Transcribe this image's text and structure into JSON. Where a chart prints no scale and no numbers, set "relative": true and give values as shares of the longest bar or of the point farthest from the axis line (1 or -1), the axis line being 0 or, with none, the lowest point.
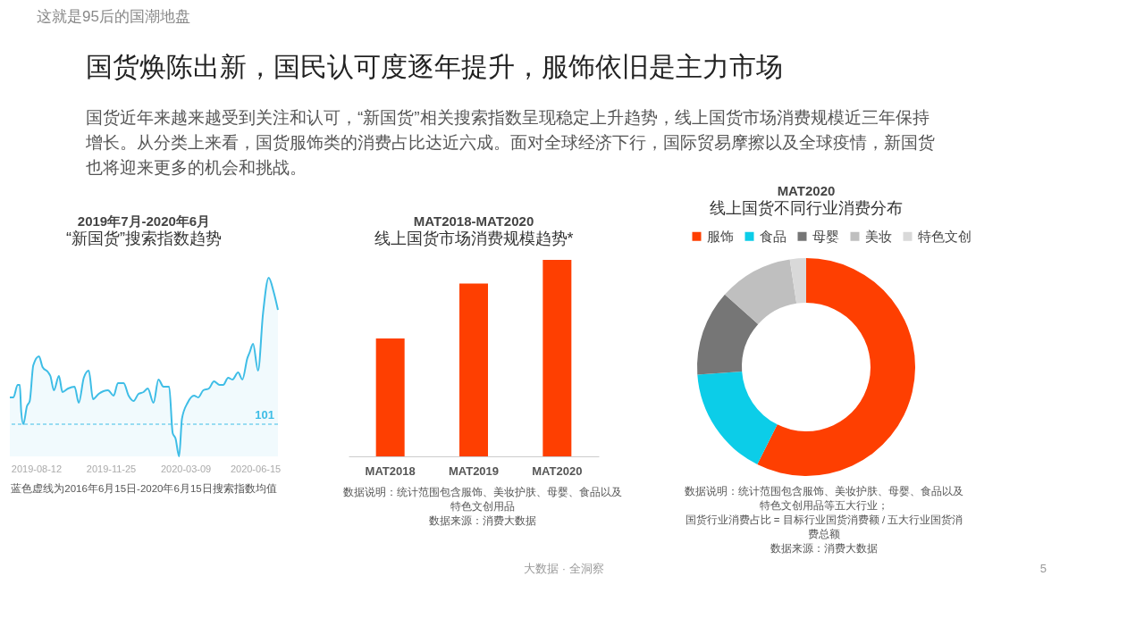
{
  "chart_data": [
    {
      "type": "other",
      "subtitle": "这就是95后的国潮地盘",
      "title": "国货焕陈出新，国民认可度逐年提升，服饰依旧是主力市场",
      "annotations": [
        "国货近年来越来越受到关注和认可，“新国货”相关搜索指数呈现稳定上升趋势，线上国货市场消费规模近三年保持",
        "增长。从分类上来看，国货服饰类的消费占比达近六成。面对全球经济下行，国际贸易摩擦以及全球疫情，新国货",
        "也将迎来更多的机会和挑战。",
        "大数据 · 全洞察",
        "5"
      ]
    },
    {
      "type": "area",
      "title": "2019年7月-2020年6月",
      "subtitle": "“新国货”搜索指数趋势",
      "relative": true,
      "color": "#3ebde6",
      "x": [
        "2019-07-06",
        "2019-07-11",
        "2019-07-17",
        "2019-07-20",
        "2019-07-22",
        "2019-07-25",
        "2019-07-30",
        "2019-08-03",
        "2019-08-08",
        "2019-08-16",
        "2019-08-21",
        "2019-08-29",
        "2019-09-01",
        "2019-09-06",
        "2019-09-13",
        "2019-09-18",
        "2019-09-26",
        "2019-10-05",
        "2019-10-11",
        "2019-10-18",
        "2019-10-25",
        "2019-10-31",
        "2019-11-08",
        "2019-11-21",
        "2019-11-29",
        "2019-12-05",
        "2019-12-13",
        "2019-12-20",
        "2019-12-27",
        "2020-01-03",
        "2020-01-10",
        "2020-01-16",
        "2020-01-24",
        "2020-01-31",
        "2020-02-07",
        "2020-02-15",
        "2020-02-20",
        "2020-02-24",
        "2020-02-29",
        "2020-03-04",
        "2020-03-12",
        "2020-03-21",
        "2020-03-27",
        "2020-04-03",
        "2020-04-11",
        "2020-04-18",
        "2020-04-26",
        "2020-05-01",
        "2020-05-08",
        "2020-05-14",
        "2020-05-22",
        "2020-05-28",
        "2020-06-04",
        "2020-06-07",
        "2020-06-12",
        "2020-06-19",
        "2020-06-26",
        "2020-07-04",
        "2020-07-11",
        "2020-07-17"
      ],
      "values": [
        0.33,
        0.33,
        0.4,
        0.4,
        0.25,
        0.18,
        0.28,
        0.31,
        0.51,
        0.56,
        0.5,
        0.47,
        0.45,
        0.37,
        0.45,
        0.36,
        0.38,
        0.39,
        0.3,
        0.44,
        0.48,
        0.32,
        0.35,
        0.37,
        0.34,
        0.41,
        0.41,
        0.34,
        0.31,
        0.35,
        0.36,
        0.38,
        0.3,
        0.43,
        0.39,
        0.39,
        0.13,
        0.1,
        0,
        0.21,
        0.3,
        0.34,
        0.33,
        0.37,
        0.38,
        0.42,
        0.4,
        0.4,
        0.44,
        0.43,
        0.47,
        0.43,
        0.55,
        0.58,
        0.63,
        0.48,
        0.8,
        1,
        0.92,
        0.82
      ],
      "xlim": [
        "2019-07-06",
        "2020-07-17"
      ],
      "xticks": [
        "2019-08-12",
        "2019-11-25",
        "2020-03-09",
        "2020-06-15"
      ],
      "ref_lines": [
        {
          "axis": "y",
          "value": 0.18,
          "line_style": "dashed",
          "color": "#3ebde6"
        }
      ],
      "annotations": [
        "101",
        "蓝色虚线为2016年6月15日-2020年6月15日搜索指数均值"
      ]
    },
    {
      "type": "bar",
      "title": "MAT2018-MAT2020",
      "subtitle": "线上国货市场消费规模趋势*",
      "relative": true,
      "color": "#fe3f01",
      "categories": [
        "MAT2018",
        "MAT2019",
        "MAT2020"
      ],
      "values": [
        0.6,
        0.88,
        1
      ],
      "annotations": [
        "数据说明：统计范围包含服饰、美妆护肤、母婴、食品以及",
        "特色文创用品",
        "数据来源：消费大数据"
      ]
    },
    {
      "type": "donut",
      "title": "MAT2020",
      "subtitle": "线上国货不同行业消费分布",
      "legend": "top",
      "categories": [
        "服饰",
        "食品",
        "母婴",
        "美妆",
        "特色文创"
      ],
      "values": [
        57.4,
        16.5,
        12.7,
        11.0,
        2.4
      ],
      "colors": [
        "#fe3f01",
        "#0ccde8",
        "#767676",
        "#bfbfbf",
        "#d9d9d9"
      ],
      "annotations": [
        "数据说明：统计范围包含服饰、美妆护肤、母婴、食品以及",
        "特色文创用品等五大行业；",
        "国货行业消费占比 = 目标行业国货消费额 / 五大行业国货消",
        "费总额",
        "数据来源：消费大数据"
      ]
    }
  ]
}
